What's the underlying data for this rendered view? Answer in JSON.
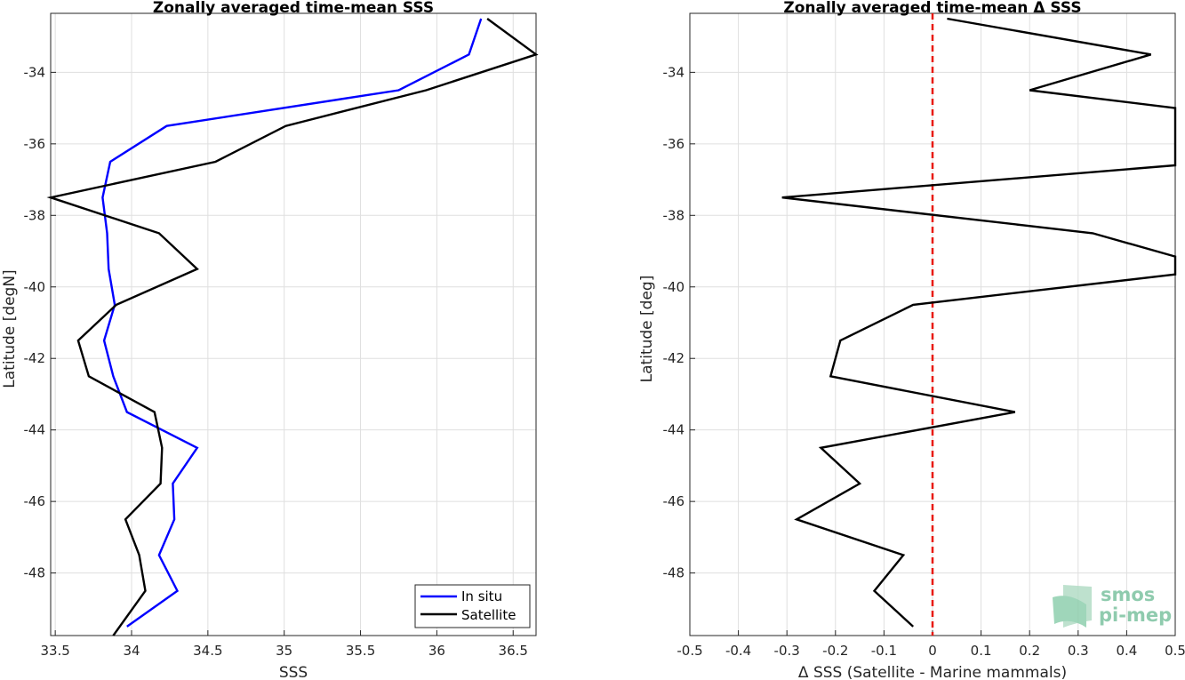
{
  "chart_data": [
    {
      "type": "line",
      "title": "Zonally averaged time-mean SSS",
      "xlabel": "SSS",
      "ylabel": "Latitude [degN]",
      "xlim": [
        33.47,
        36.65
      ],
      "ylim": [
        -49.75,
        -32.35
      ],
      "xticks": [
        33.5,
        34,
        34.5,
        35,
        35.5,
        36,
        36.5
      ],
      "xtick_labels": [
        "33.5",
        "34",
        "34.5",
        "35",
        "35.5",
        "36",
        "36.5"
      ],
      "yticks": [
        -34,
        -36,
        -38,
        -40,
        -42,
        -44,
        -46,
        -48
      ],
      "ytick_labels": [
        "-34",
        "-36",
        "-38",
        "-40",
        "-42",
        "-44",
        "-46",
        "-48"
      ],
      "grid": true,
      "legend_position": "bottom-right",
      "series": [
        {
          "name": "In situ",
          "color": "#0000ff",
          "points": [
            [
              36.29,
              -32.5
            ],
            [
              36.21,
              -33.5
            ],
            [
              35.75,
              -34.5
            ],
            [
              34.23,
              -35.5
            ],
            [
              33.86,
              -36.5
            ],
            [
              33.81,
              -37.5
            ],
            [
              33.84,
              -38.5
            ],
            [
              33.85,
              -39.5
            ],
            [
              33.89,
              -40.5
            ],
            [
              33.82,
              -41.5
            ],
            [
              33.88,
              -42.5
            ],
            [
              33.97,
              -43.5
            ],
            [
              34.43,
              -44.5
            ],
            [
              34.27,
              -45.5
            ],
            [
              34.28,
              -46.5
            ],
            [
              34.18,
              -47.5
            ],
            [
              34.3,
              -48.5
            ],
            [
              33.97,
              -49.5
            ]
          ]
        },
        {
          "name": "Satellite",
          "color": "#000000",
          "points": [
            [
              36.33,
              -32.5
            ],
            [
              36.65,
              -33.5
            ],
            [
              35.93,
              -34.5
            ],
            [
              35.01,
              -35.5
            ],
            [
              34.55,
              -36.5
            ],
            [
              33.47,
              -37.5
            ],
            [
              34.18,
              -38.5
            ],
            [
              34.43,
              -39.5
            ],
            [
              33.9,
              -40.5
            ],
            [
              33.65,
              -41.5
            ],
            [
              33.72,
              -42.5
            ],
            [
              34.15,
              -43.5
            ],
            [
              34.2,
              -44.5
            ],
            [
              34.19,
              -45.5
            ],
            [
              33.96,
              -46.5
            ],
            [
              34.05,
              -47.5
            ],
            [
              34.09,
              -48.5
            ],
            [
              33.88,
              -49.75
            ]
          ]
        }
      ]
    },
    {
      "type": "line",
      "title": "Zonally averaged time-mean Δ SSS",
      "xlabel": "Δ SSS (Satellite - Marine mammals)",
      "ylabel": "Latitude [deg]",
      "xlim": [
        -0.5,
        0.5
      ],
      "ylim": [
        -49.75,
        -32.35
      ],
      "xticks": [
        -0.5,
        -0.4,
        -0.3,
        -0.2,
        -0.1,
        0,
        0.1,
        0.2,
        0.3,
        0.4,
        0.5
      ],
      "xtick_labels": [
        "-0.5",
        "-0.4",
        "-0.3",
        "-0.2",
        "-0.1",
        "0",
        "0.1",
        "0.2",
        "0.3",
        "0.4",
        "0.5"
      ],
      "yticks": [
        -34,
        -36,
        -38,
        -40,
        -42,
        -44,
        -46,
        -48
      ],
      "ytick_labels": [
        "-34",
        "-36",
        "-38",
        "-40",
        "-42",
        "-44",
        "-46",
        "-48"
      ],
      "grid": true,
      "reference_line": {
        "x": 0,
        "color": "#e8190e",
        "style": "dashed"
      },
      "series": [
        {
          "color": "#000000",
          "points": [
            [
              0.03,
              -32.5
            ],
            [
              0.45,
              -33.5
            ],
            [
              0.2,
              -34.5
            ],
            [
              0.5,
              -35.0
            ],
            [
              0.5,
              -36.6
            ],
            [
              -0.31,
              -37.5
            ],
            [
              0.33,
              -38.5
            ],
            [
              0.5,
              -39.15
            ],
            [
              0.5,
              -39.65
            ],
            [
              -0.04,
              -40.5
            ],
            [
              -0.19,
              -41.5
            ],
            [
              -0.21,
              -42.5
            ],
            [
              0.17,
              -43.5
            ],
            [
              -0.23,
              -44.5
            ],
            [
              -0.15,
              -45.5
            ],
            [
              -0.28,
              -46.5
            ],
            [
              -0.06,
              -47.5
            ],
            [
              -0.12,
              -48.5
            ],
            [
              -0.04,
              -49.5
            ]
          ]
        }
      ]
    }
  ],
  "logo": {
    "line1": "smos",
    "line2": "pi-mep"
  }
}
